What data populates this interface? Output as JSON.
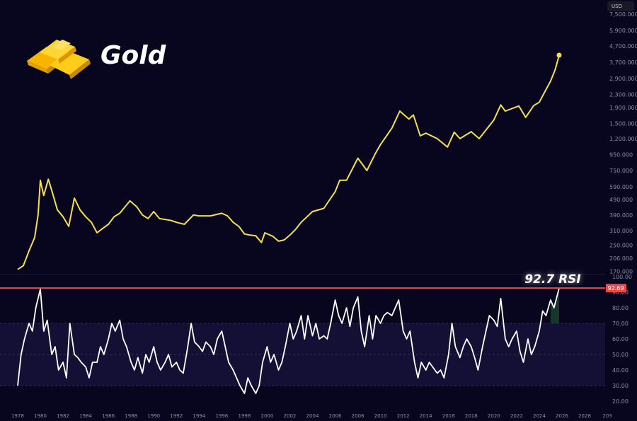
{
  "title": "Gold",
  "currency_label": "USD",
  "annotation": "92.7 RSI",
  "colors": {
    "background": "#07061e",
    "price_line": "#f5e04a",
    "rsi_line": "#ffffff",
    "rsi_band": "#130f35",
    "current_line": "#e84a4a",
    "badge": "#e84a4a"
  },
  "icons": {
    "logo": "gold-bars-icon"
  },
  "chart_data": [
    {
      "type": "line",
      "title": "Gold",
      "yscale": "log",
      "ylabel": "USD",
      "ylim": [
        150,
        8000
      ],
      "yticks": [
        "7,500.000",
        "5,900.000",
        "4,700.000",
        "3,700.000",
        "2,900.000",
        "2,300.000",
        "1,900.000",
        "1,500.000",
        "1,200.000",
        "950.000",
        "750.000",
        "590.000",
        "490.000",
        "390.000",
        "310.000",
        "250.000",
        "206.000",
        "170.000"
      ],
      "ytick_values": [
        7500,
        5900,
        4700,
        3700,
        2900,
        2300,
        1900,
        1500,
        1200,
        950,
        750,
        590,
        490,
        390,
        310,
        250,
        206,
        170
      ],
      "xticks": [
        "1978",
        "1980",
        "1982",
        "1984",
        "1986",
        "1988",
        "1990",
        "1992",
        "1994",
        "1996",
        "1998",
        "2000",
        "2002",
        "2004",
        "2006",
        "2008",
        "2010",
        "2012",
        "2014",
        "2016",
        "2018",
        "2020",
        "2022",
        "2024",
        "2026",
        "2028",
        "203"
      ],
      "x": [
        1978.0,
        1978.5,
        1979.0,
        1979.5,
        1979.8,
        1980.0,
        1980.1,
        1980.3,
        1980.7,
        1981.0,
        1981.5,
        1982.0,
        1982.5,
        1983.0,
        1983.5,
        1984.0,
        1984.5,
        1985.0,
        1985.5,
        1986.0,
        1986.5,
        1987.0,
        1987.9,
        1988.5,
        1989.0,
        1989.5,
        1990.0,
        1990.5,
        1991.0,
        1991.5,
        1992.0,
        1992.7,
        1993.5,
        1994.0,
        1995.0,
        1996.0,
        1996.5,
        1997.0,
        1997.5,
        1998.0,
        1998.5,
        1999.0,
        1999.5,
        1999.8,
        2000.5,
        2001.0,
        2001.5,
        2002.0,
        2002.5,
        2003.0,
        2004.0,
        2005.0,
        2006.0,
        2006.4,
        2007.0,
        2008.0,
        2008.8,
        2009.5,
        2010.0,
        2011.0,
        2011.7,
        2012.5,
        2012.9,
        2013.5,
        2014.0,
        2015.0,
        2015.9,
        2016.5,
        2017.0,
        2018.0,
        2018.7,
        2019.5,
        2020.0,
        2020.6,
        2021.0,
        2022.2,
        2022.8,
        2023.5,
        2024.0,
        2024.5,
        2025.0,
        2025.4,
        2025.75
      ],
      "values": [
        175,
        185,
        230,
        280,
        390,
        650,
        600,
        520,
        660,
        560,
        420,
        380,
        330,
        500,
        420,
        380,
        350,
        300,
        320,
        340,
        380,
        400,
        480,
        440,
        390,
        370,
        410,
        370,
        365,
        360,
        350,
        340,
        390,
        385,
        385,
        400,
        385,
        350,
        330,
        295,
        290,
        287,
        260,
        300,
        285,
        265,
        270,
        290,
        315,
        350,
        410,
        430,
        550,
        650,
        650,
        900,
        750,
        950,
        1100,
        1400,
        1800,
        1600,
        1700,
        1250,
        1300,
        1200,
        1060,
        1320,
        1200,
        1330,
        1200,
        1420,
        1580,
        1970,
        1800,
        1940,
        1640,
        1950,
        2050,
        2400,
        2800,
        3300,
        4100
      ]
    },
    {
      "type": "line",
      "title": "RSI",
      "ylim": [
        15,
        100
      ],
      "yticks": [
        "100.00",
        "90.00",
        "80.00",
        "70.00",
        "60.00",
        "50.00",
        "40.00",
        "30.00",
        "20.00"
      ],
      "ytick_values": [
        100,
        90,
        80,
        70,
        60,
        50,
        40,
        30,
        20
      ],
      "band": [
        30,
        70
      ],
      "current_value_label": "92.69",
      "current_value": 92.69,
      "x": [
        1978.0,
        1978.3,
        1978.6,
        1979.0,
        1979.3,
        1979.6,
        1980.0,
        1980.3,
        1980.6,
        1981.0,
        1981.3,
        1981.6,
        1982.0,
        1982.3,
        1982.6,
        1983.0,
        1983.3,
        1983.6,
        1984.0,
        1984.3,
        1984.6,
        1985.0,
        1985.3,
        1985.6,
        1986.0,
        1986.3,
        1986.6,
        1987.0,
        1987.3,
        1987.6,
        1988.0,
        1988.3,
        1988.6,
        1989.0,
        1989.3,
        1989.6,
        1990.0,
        1990.3,
        1990.6,
        1991.0,
        1991.3,
        1991.6,
        1992.0,
        1992.3,
        1992.6,
        1993.0,
        1993.3,
        1993.6,
        1994.0,
        1994.3,
        1994.6,
        1995.0,
        1995.3,
        1995.6,
        1996.0,
        1996.3,
        1996.6,
        1997.0,
        1997.3,
        1997.6,
        1998.0,
        1998.3,
        1998.6,
        1999.0,
        1999.3,
        1999.6,
        2000.0,
        2000.3,
        2000.6,
        2001.0,
        2001.3,
        2001.6,
        2002.0,
        2002.3,
        2002.6,
        2003.0,
        2003.3,
        2003.6,
        2004.0,
        2004.3,
        2004.6,
        2005.0,
        2005.3,
        2005.6,
        2006.0,
        2006.3,
        2006.6,
        2007.0,
        2007.3,
        2007.6,
        2008.0,
        2008.3,
        2008.6,
        2009.0,
        2009.3,
        2009.6,
        2010.0,
        2010.3,
        2010.6,
        2011.0,
        2011.3,
        2011.6,
        2012.0,
        2012.3,
        2012.6,
        2013.0,
        2013.3,
        2013.6,
        2014.0,
        2014.3,
        2014.6,
        2015.0,
        2015.3,
        2015.6,
        2016.0,
        2016.3,
        2016.6,
        2017.0,
        2017.3,
        2017.6,
        2018.0,
        2018.3,
        2018.6,
        2019.0,
        2019.3,
        2019.6,
        2020.0,
        2020.3,
        2020.6,
        2021.0,
        2021.3,
        2021.6,
        2022.0,
        2022.3,
        2022.6,
        2023.0,
        2023.3,
        2023.6,
        2024.0,
        2024.3,
        2024.6,
        2025.0,
        2025.3,
        2025.75
      ],
      "values": [
        30,
        50,
        60,
        70,
        65,
        80,
        92,
        65,
        72,
        50,
        55,
        40,
        45,
        35,
        70,
        50,
        48,
        45,
        42,
        35,
        45,
        45,
        55,
        50,
        60,
        70,
        65,
        72,
        60,
        55,
        45,
        40,
        48,
        38,
        50,
        45,
        55,
        45,
        40,
        45,
        50,
        42,
        45,
        40,
        38,
        55,
        70,
        58,
        55,
        52,
        58,
        55,
        50,
        60,
        65,
        55,
        45,
        40,
        35,
        30,
        25,
        35,
        30,
        25,
        30,
        45,
        55,
        45,
        50,
        40,
        45,
        55,
        70,
        60,
        65,
        75,
        60,
        75,
        62,
        70,
        60,
        62,
        60,
        70,
        85,
        75,
        70,
        80,
        68,
        80,
        87,
        65,
        55,
        75,
        60,
        75,
        70,
        75,
        77,
        75,
        80,
        85,
        65,
        60,
        65,
        45,
        35,
        45,
        40,
        45,
        42,
        38,
        40,
        35,
        50,
        70,
        55,
        48,
        55,
        60,
        55,
        48,
        40,
        55,
        65,
        75,
        72,
        68,
        86,
        60,
        55,
        60,
        65,
        52,
        45,
        60,
        50,
        55,
        65,
        78,
        75,
        85,
        80,
        92.7
      ]
    }
  ]
}
